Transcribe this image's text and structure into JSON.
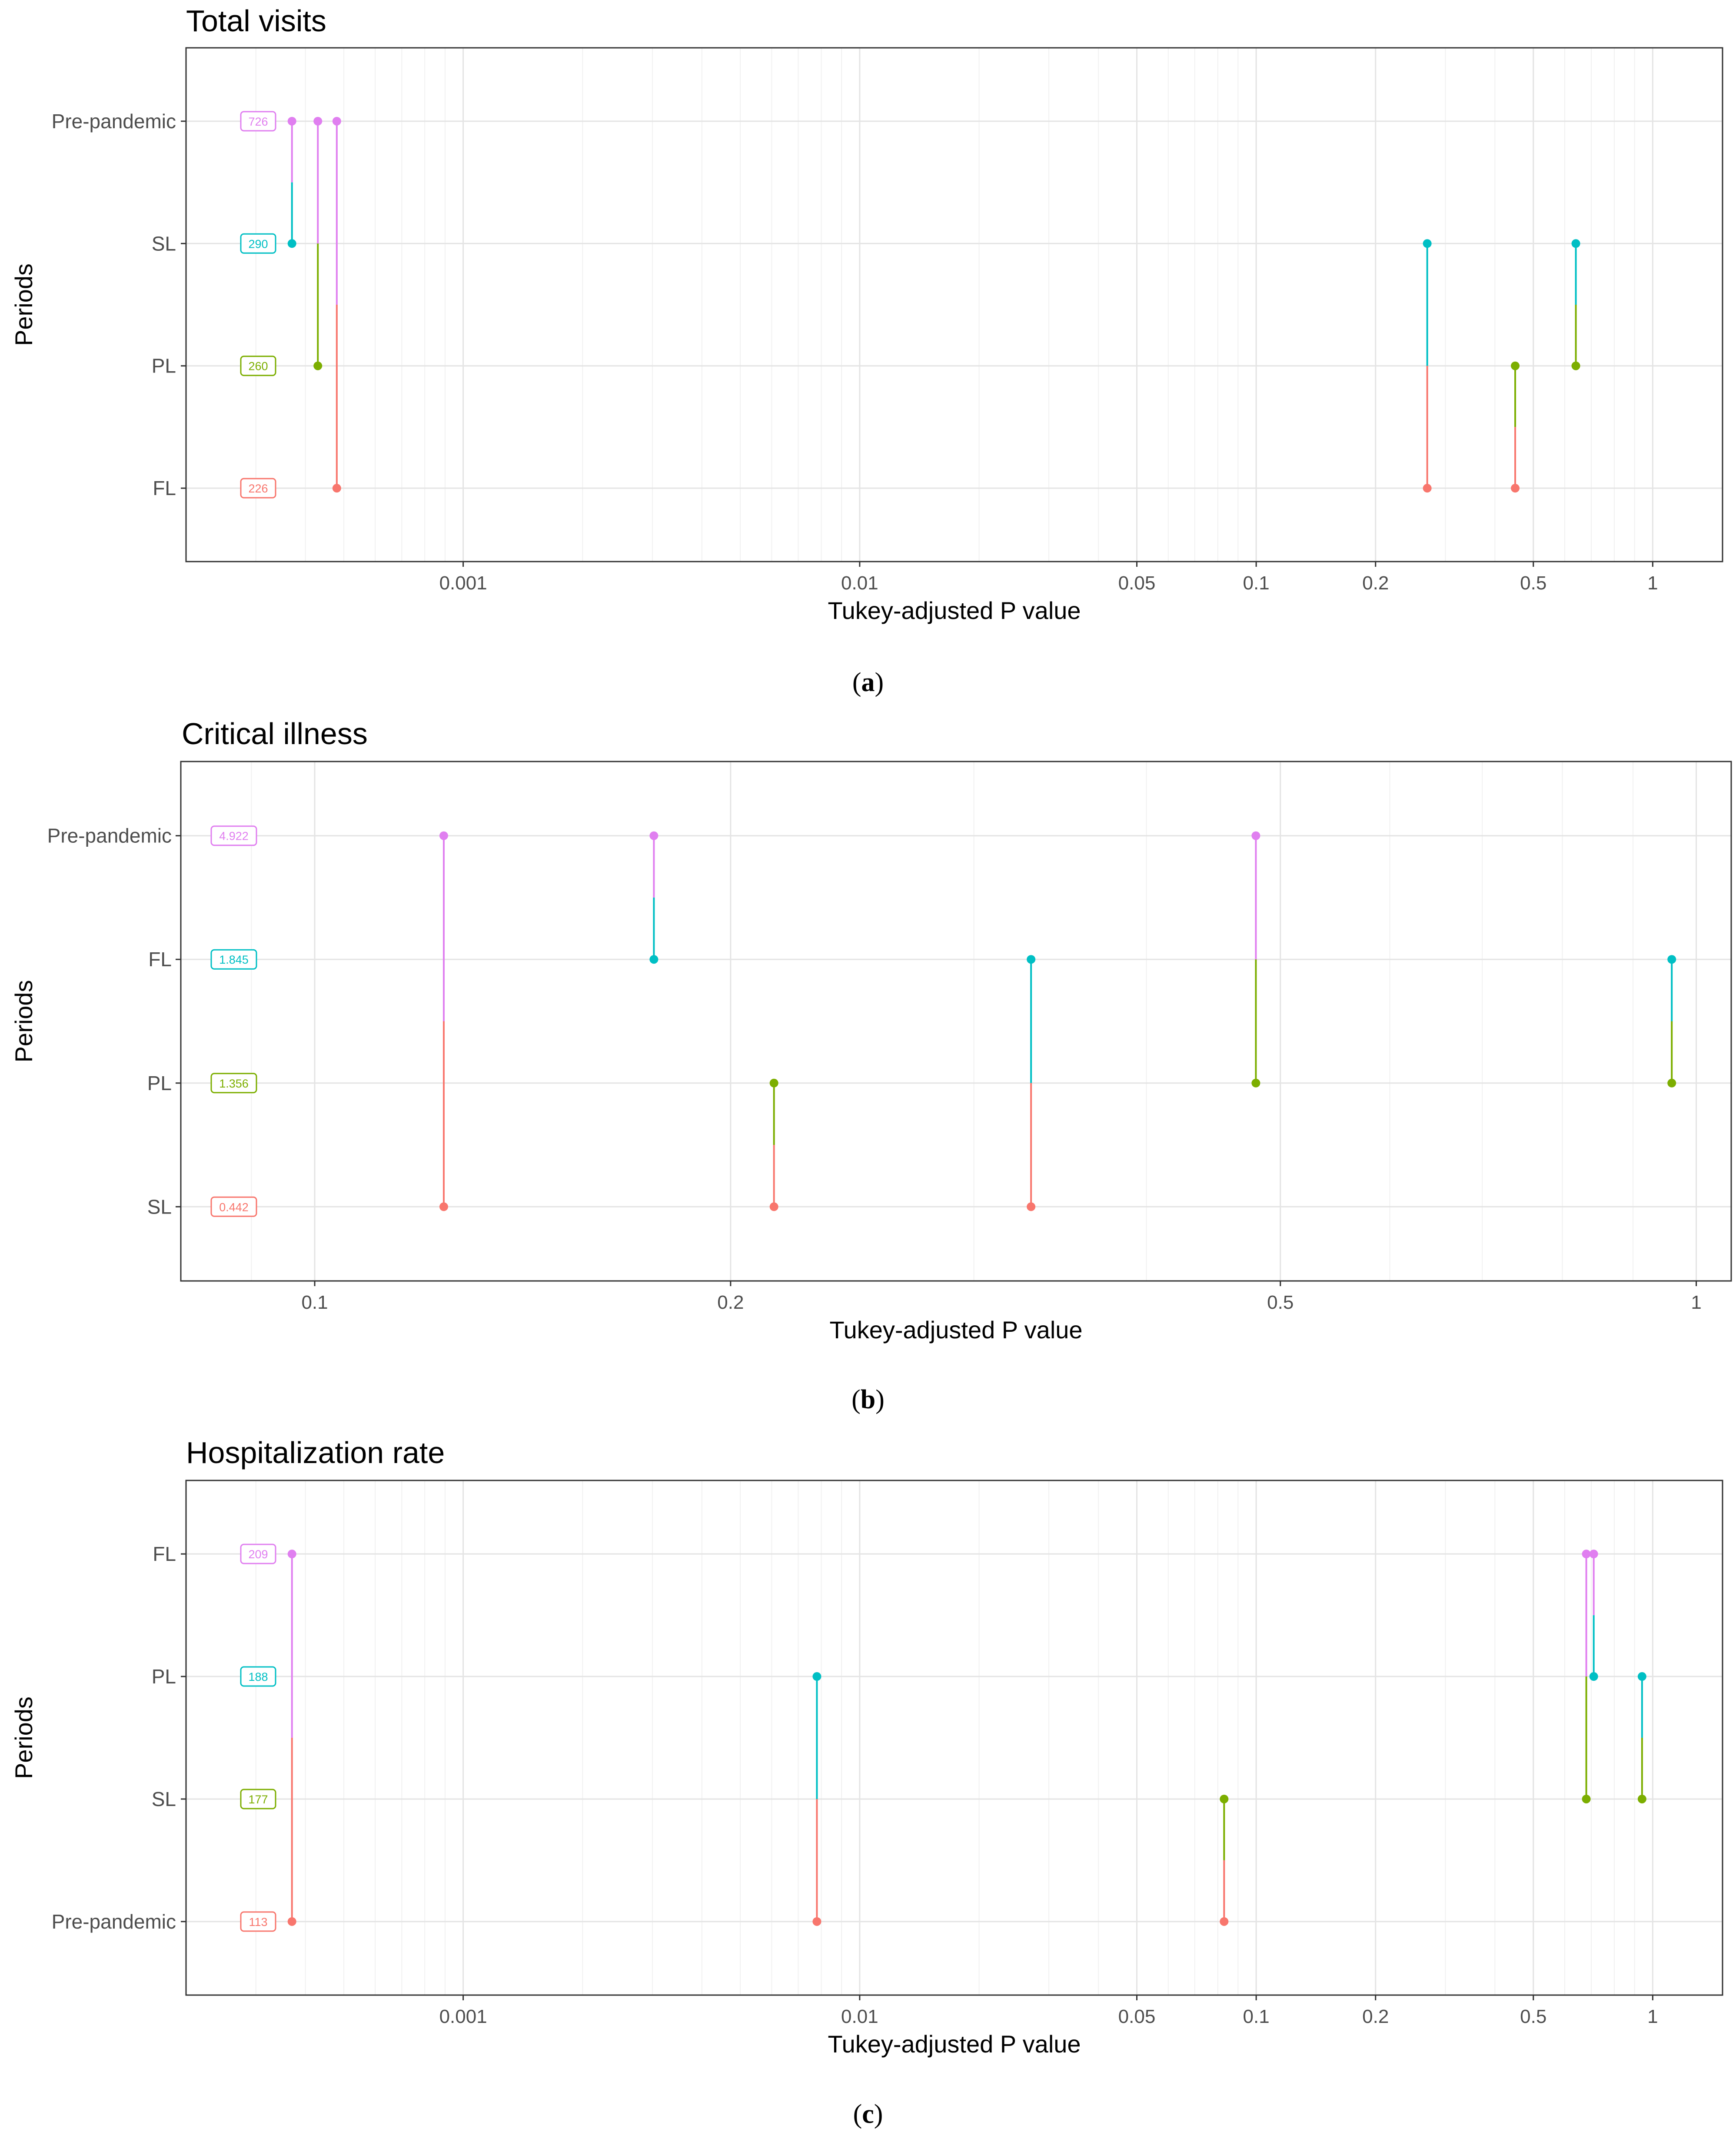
{
  "chart_data": [
    {
      "type": "dumbbell",
      "panel": "a",
      "caption": "(a)",
      "caption_letter": "a",
      "title": "Total visits",
      "xlabel": "Tukey-adjusted P value",
      "ylabel": "Periods",
      "x_scale": "log10",
      "xlim": [
        0.0002,
        1.5
      ],
      "xticks": [
        0.001,
        0.01,
        0.05,
        0.1,
        0.2,
        0.5,
        1
      ],
      "xtick_labels": [
        "0.001",
        "0.01",
        "0.05",
        "0.1",
        "0.2",
        "0.5",
        "1"
      ],
      "categories_top_to_bottom": [
        "Pre-pandemic",
        "SL",
        "PL",
        "FL"
      ],
      "labels": [
        {
          "category": "Pre-pandemic",
          "text": "726",
          "color": "#E07FF0"
        },
        {
          "category": "SL",
          "text": "290",
          "color": "#00BFC4"
        },
        {
          "category": "PL",
          "text": "260",
          "color": "#7CAE00"
        },
        {
          "category": "FL",
          "text": "226",
          "color": "#F8766D"
        }
      ],
      "segments": [
        {
          "p": 0.00037,
          "from": "Pre-pandemic",
          "to": "SL"
        },
        {
          "p": 0.00043,
          "from": "Pre-pandemic",
          "to": "PL"
        },
        {
          "p": 0.00048,
          "from": "Pre-pandemic",
          "to": "FL"
        },
        {
          "p": 0.27,
          "from": "SL",
          "to": "FL"
        },
        {
          "p": 0.45,
          "from": "PL",
          "to": "FL"
        },
        {
          "p": 0.64,
          "from": "SL",
          "to": "PL"
        }
      ]
    },
    {
      "type": "dumbbell",
      "panel": "b",
      "caption": "(b)",
      "caption_letter": "b",
      "title": "Critical illness",
      "xlabel": "Tukey-adjusted P value",
      "ylabel": "Periods",
      "x_scale": "log10",
      "xlim": [
        0.08,
        1.06
      ],
      "xticks": [
        0.1,
        0.2,
        0.5,
        1
      ],
      "xtick_labels": [
        "0.1",
        "0.2",
        "0.5",
        "1"
      ],
      "categories_top_to_bottom": [
        "Pre-pandemic",
        "FL",
        "PL",
        "SL"
      ],
      "labels": [
        {
          "category": "Pre-pandemic",
          "text": "4.922",
          "color": "#E07FF0"
        },
        {
          "category": "FL",
          "text": "1.845",
          "color": "#00BFC4"
        },
        {
          "category": "PL",
          "text": "1.356",
          "color": "#7CAE00"
        },
        {
          "category": "SL",
          "text": "0.442",
          "color": "#F8766D"
        }
      ],
      "segments": [
        {
          "p": 0.124,
          "from": "Pre-pandemic",
          "to": "SL"
        },
        {
          "p": 0.176,
          "from": "Pre-pandemic",
          "to": "FL"
        },
        {
          "p": 0.215,
          "from": "PL",
          "to": "SL"
        },
        {
          "p": 0.33,
          "from": "FL",
          "to": "SL"
        },
        {
          "p": 0.48,
          "from": "Pre-pandemic",
          "to": "PL"
        },
        {
          "p": 0.96,
          "from": "FL",
          "to": "PL"
        }
      ]
    },
    {
      "type": "dumbbell",
      "panel": "c",
      "caption": "(c)",
      "caption_letter": "c",
      "title": "Hospitalization rate",
      "xlabel": "Tukey-adjusted P value",
      "ylabel": "Periods",
      "x_scale": "log10",
      "xlim": [
        0.0002,
        1.5
      ],
      "xticks": [
        0.001,
        0.01,
        0.05,
        0.1,
        0.2,
        0.5,
        1
      ],
      "xtick_labels": [
        "0.001",
        "0.01",
        "0.05",
        "0.1",
        "0.2",
        "0.5",
        "1"
      ],
      "categories_top_to_bottom": [
        "FL",
        "PL",
        "SL",
        "Pre-pandemic"
      ],
      "labels": [
        {
          "category": "FL",
          "text": "209",
          "color": "#E07FF0"
        },
        {
          "category": "PL",
          "text": "188",
          "color": "#00BFC4"
        },
        {
          "category": "SL",
          "text": "177",
          "color": "#7CAE00"
        },
        {
          "category": "Pre-pandemic",
          "text": "113",
          "color": "#F8766D"
        }
      ],
      "segments": [
        {
          "p": 0.00037,
          "from": "FL",
          "to": "Pre-pandemic"
        },
        {
          "p": 0.0078,
          "from": "PL",
          "to": "Pre-pandemic"
        },
        {
          "p": 0.083,
          "from": "SL",
          "to": "Pre-pandemic"
        },
        {
          "p": 0.68,
          "from": "FL",
          "to": "SL"
        },
        {
          "p": 0.71,
          "from": "FL",
          "to": "PL"
        },
        {
          "p": 0.94,
          "from": "PL",
          "to": "SL"
        }
      ]
    }
  ]
}
